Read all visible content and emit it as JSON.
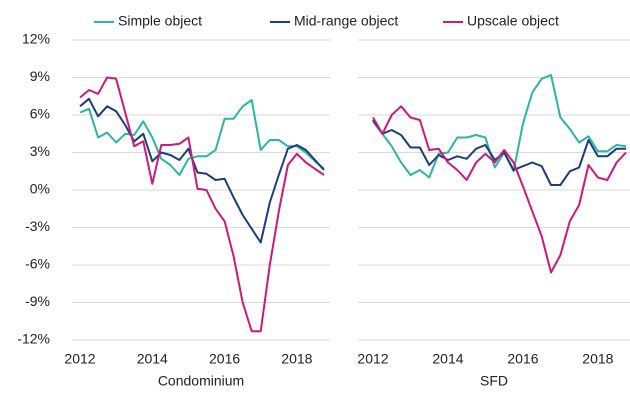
{
  "chart_data": {
    "type": "line",
    "series": [
      {
        "name": "Simple object",
        "color": "#2ab5a5"
      },
      {
        "name": "Mid-range object",
        "color": "#1a3d7c"
      },
      {
        "name": "Upscale object",
        "color": "#d0177a"
      }
    ],
    "x": [
      2012,
      2012.25,
      2012.5,
      2012.75,
      2013,
      2013.25,
      2013.5,
      2013.75,
      2014,
      2014.25,
      2014.5,
      2014.75,
      2015,
      2015.25,
      2015.5,
      2015.75,
      2016,
      2016.25,
      2016.5,
      2016.75,
      2017,
      2017.25,
      2017.5,
      2017.75,
      2018,
      2018.25,
      2018.5,
      2018.75
    ],
    "xlim": [
      2012,
      2018.75
    ],
    "xticks": [
      2012,
      2014,
      2016,
      2018
    ],
    "ylim": [
      -12,
      12
    ],
    "yticks": [
      {
        "value": 12,
        "label": "12%"
      },
      {
        "value": 9,
        "label": "9%"
      },
      {
        "value": 6,
        "label": "6%"
      },
      {
        "value": 3,
        "label": "3%"
      },
      {
        "value": 0,
        "label": "0%"
      },
      {
        "value": -3,
        "label": "-3%"
      },
      {
        "value": -6,
        "label": "-6%"
      },
      {
        "value": -9,
        "label": "-9%"
      },
      {
        "value": -12,
        "label": "-12%"
      }
    ],
    "grid": true,
    "panels": [
      {
        "label": "Condominium",
        "values": [
          [
            6.2,
            6.5,
            4.2,
            4.6,
            3.8,
            4.5,
            4.4,
            5.5,
            4.2,
            2.5,
            2.0,
            1.2,
            2.5,
            2.7,
            2.7,
            3.2,
            5.7,
            5.7,
            6.7,
            7.2,
            3.2,
            4.0,
            4.0,
            3.5,
            3.5,
            3.0,
            2.3,
            1.7
          ],
          [
            6.7,
            7.3,
            5.9,
            6.7,
            6.3,
            5.2,
            3.9,
            4.5,
            2.3,
            3.0,
            2.8,
            2.4,
            3.3,
            1.4,
            1.3,
            0.8,
            0.9,
            -0.6,
            -2.0,
            -3.1,
            -4.2,
            -1.0,
            1.2,
            3.3,
            3.6,
            3.2,
            2.4,
            1.6
          ],
          [
            7.4,
            8.0,
            7.7,
            9.0,
            8.9,
            6.2,
            3.5,
            3.9,
            0.5,
            3.6,
            3.6,
            3.7,
            4.2,
            0.1,
            0.0,
            -1.5,
            -2.5,
            -5.3,
            -9.0,
            -11.3,
            -11.3,
            -6.0,
            -1.7,
            2.0,
            2.9,
            2.2,
            1.7,
            1.2
          ]
        ]
      },
      {
        "label": "SFD",
        "values": [
          [
            5.5,
            4.5,
            3.5,
            2.2,
            1.2,
            1.6,
            1.0,
            2.9,
            3.0,
            4.2,
            4.2,
            4.4,
            4.2,
            1.8,
            3.0,
            1.5,
            5.3,
            7.8,
            8.9,
            9.2,
            5.8,
            4.9,
            3.8,
            4.3,
            3.1,
            3.1,
            3.6,
            3.5
          ],
          [
            5.6,
            4.5,
            4.8,
            4.4,
            3.4,
            3.4,
            2.0,
            2.8,
            2.4,
            2.7,
            2.5,
            3.3,
            3.6,
            2.4,
            3.0,
            1.6,
            1.9,
            2.2,
            1.9,
            0.4,
            0.4,
            1.5,
            1.8,
            4.0,
            2.7,
            2.7,
            3.3,
            3.3
          ],
          [
            5.8,
            4.5,
            6.0,
            6.7,
            5.8,
            5.6,
            3.2,
            3.3,
            2.2,
            1.6,
            0.8,
            2.2,
            2.9,
            2.2,
            3.2,
            2.2,
            0.3,
            -1.7,
            -3.7,
            -6.6,
            -5.2,
            -2.5,
            -1.2,
            2.0,
            1.0,
            0.8,
            2.2,
            3.0
          ]
        ]
      }
    ]
  }
}
